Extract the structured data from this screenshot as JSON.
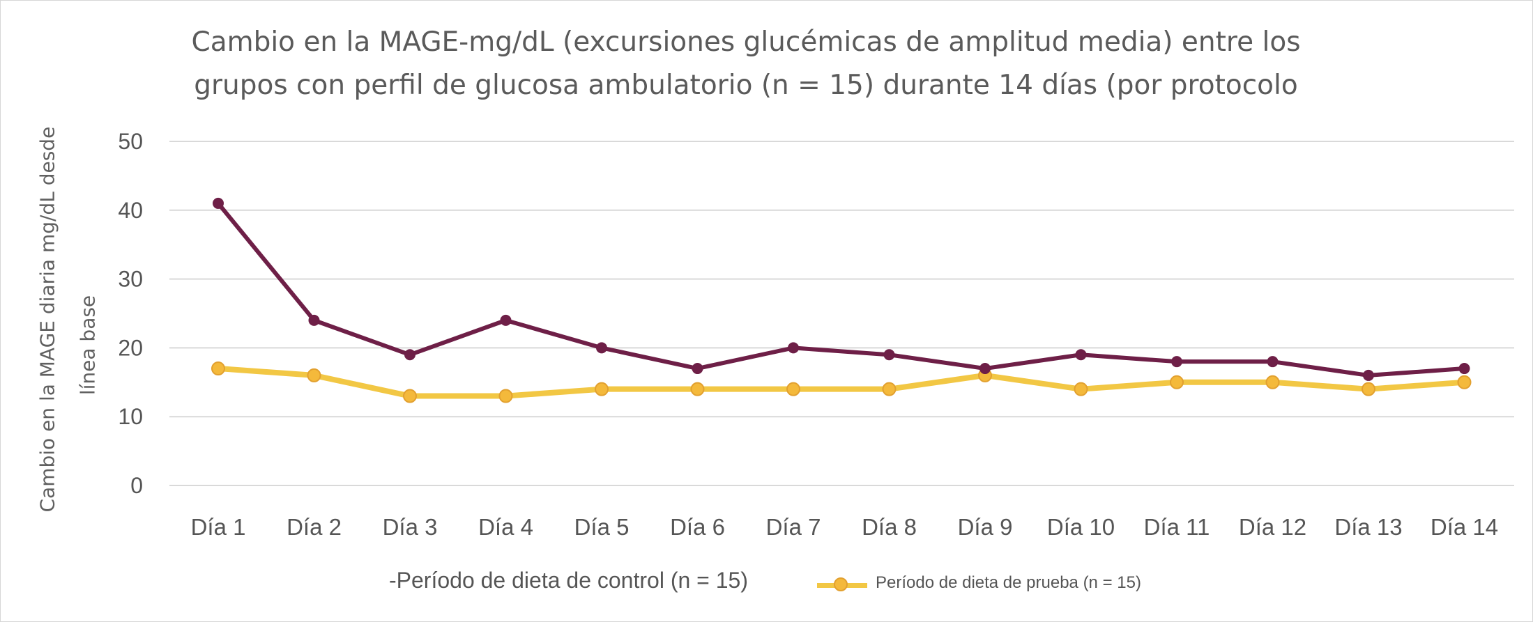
{
  "chart_data": {
    "type": "line",
    "title_lines": [
      "Cambio en la MAGE-mg/dL (excursiones glucémicas de amplitud media) entre los",
      "grupos con perfil de glucosa ambulatorio (n = 15) durante 14 días (por protocolo"
    ],
    "ylabel_lines": [
      "Cambio en la MAGE diaria mg/dL desde",
      "línea base"
    ],
    "xlabel": "",
    "categories": [
      "Día 1",
      "Día 2",
      "Día 3",
      "Día 4",
      "Día 5",
      "Día 6",
      "Día 7",
      "Día 8",
      "Día 9",
      "Día 10",
      "Día 11",
      "Día 12",
      "Día 13",
      "Día 14"
    ],
    "yticks": [
      "0",
      "10",
      "20",
      "30",
      "40",
      "50"
    ],
    "ylim": [
      0,
      50
    ],
    "grid": true,
    "legend_position": "bottom",
    "series": [
      {
        "name": "-Período de dieta de control (n = 15)",
        "color": "#6e1f47",
        "values": [
          41,
          24,
          19,
          24,
          20,
          17,
          20,
          19,
          17,
          19,
          18,
          18,
          16,
          17
        ]
      },
      {
        "name": "Período de dieta de prueba (n = 15)",
        "color": "#f2c744",
        "marker_color": "#f4b93b",
        "values": [
          17,
          16,
          13,
          13,
          14,
          14,
          14,
          14,
          16,
          14,
          15,
          15,
          14,
          15
        ]
      }
    ]
  }
}
